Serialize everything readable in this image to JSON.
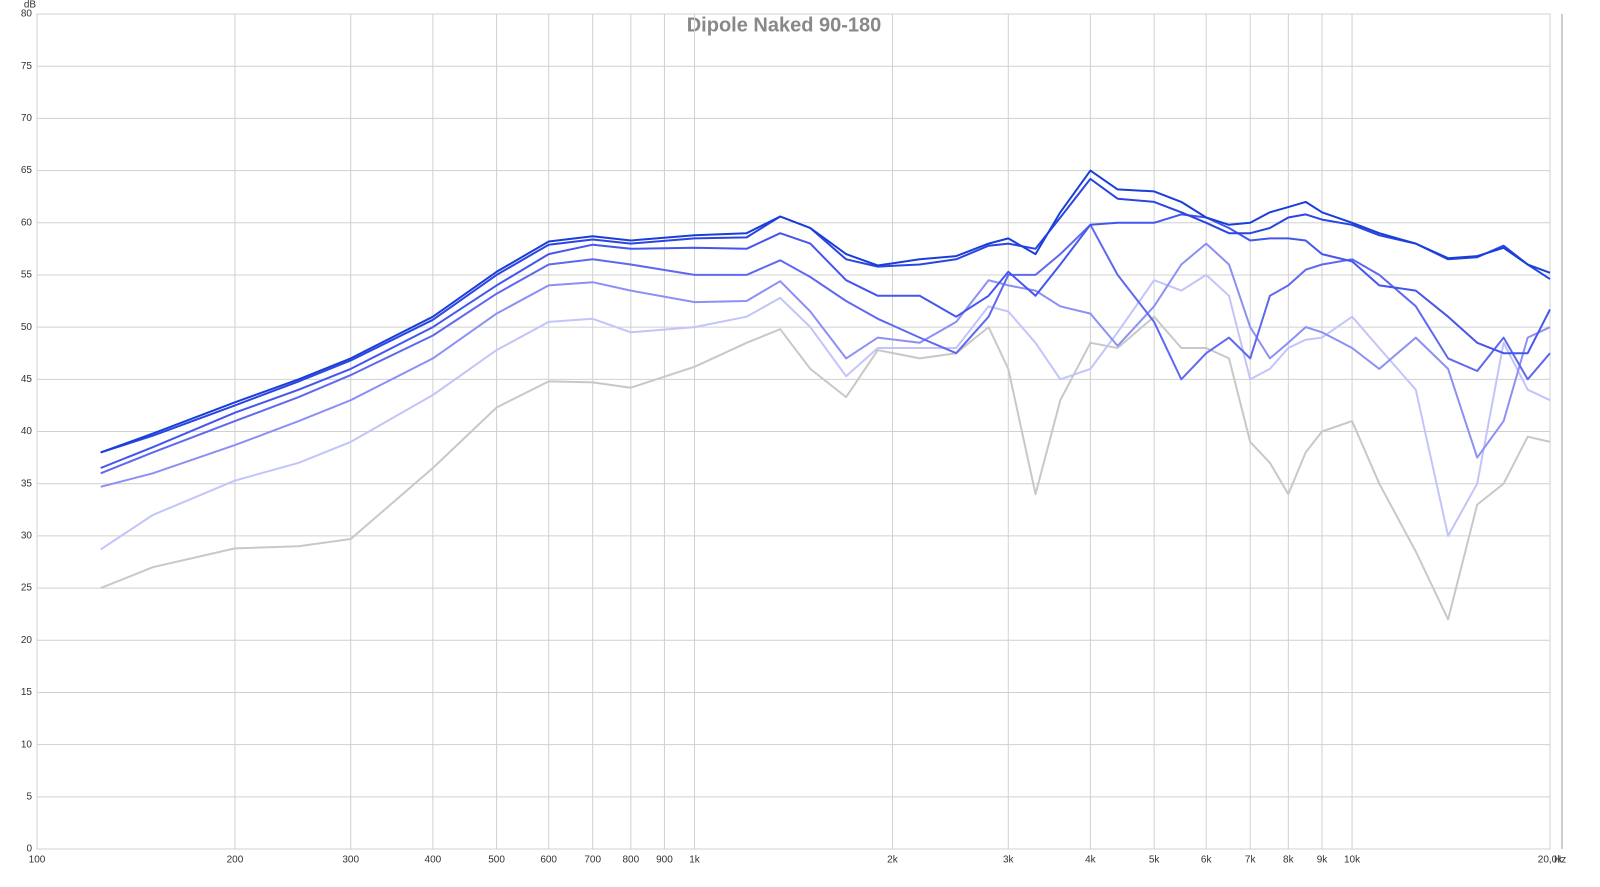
{
  "chart_data": {
    "type": "line",
    "title": "Dipole Naked 90-180",
    "xlabel": "Hz",
    "ylabel": "dB",
    "xscale": "log",
    "grid": true,
    "xlim": [
      100,
      20000
    ],
    "ylim": [
      0,
      80
    ],
    "xticks": [
      100,
      200,
      300,
      400,
      500,
      600,
      700,
      800,
      900,
      {
        "value": 1000,
        "label": "1k"
      },
      {
        "value": 2000,
        "label": "2k"
      },
      {
        "value": 3000,
        "label": "3k"
      },
      {
        "value": 4000,
        "label": "4k"
      },
      {
        "value": 5000,
        "label": "5k"
      },
      {
        "value": 6000,
        "label": "6k"
      },
      {
        "value": 7000,
        "label": "7k"
      },
      {
        "value": 8000,
        "label": "8k"
      },
      {
        "value": 9000,
        "label": "9k"
      },
      {
        "value": 10000,
        "label": "10k"
      },
      {
        "value": 20000,
        "label": "20,0k"
      }
    ],
    "yticks": [
      0,
      5,
      10,
      15,
      20,
      25,
      30,
      35,
      40,
      45,
      50,
      55,
      60,
      65,
      70,
      75,
      80
    ],
    "x": [
      125,
      150,
      200,
      250,
      300,
      400,
      500,
      600,
      700,
      800,
      1000,
      1200,
      1350,
      1500,
      1700,
      1900,
      2200,
      2500,
      2800,
      3000,
      3300,
      3600,
      4000,
      4400,
      5000,
      5500,
      6000,
      6500,
      7000,
      7500,
      8000,
      8500,
      9000,
      10000,
      11000,
      12500,
      14000,
      15500,
      17000,
      18500,
      20000
    ],
    "series": [
      {
        "color": "#1a3ed8",
        "values": [
          38,
          39.8,
          42.8,
          45,
          47,
          51,
          55.3,
          58.2,
          58.7,
          58.3,
          58.8,
          59,
          60.6,
          59.5,
          57,
          55.9,
          56.5,
          56.8,
          58,
          58.5,
          57,
          61,
          65,
          63.2,
          63,
          62,
          60.5,
          59.8,
          60,
          61,
          61.5,
          62,
          61,
          60,
          59,
          58,
          56.6,
          56.8,
          57.6,
          56,
          55.2
        ]
      },
      {
        "color": "#2a45e2",
        "values": [
          38,
          39.6,
          42.5,
          44.8,
          46.8,
          50.7,
          55,
          57.9,
          58.4,
          58,
          58.5,
          58.6,
          60.6,
          59.5,
          56.5,
          55.8,
          56,
          56.5,
          57.8,
          58,
          57.5,
          60.5,
          64.2,
          62.3,
          62,
          61,
          60,
          59,
          59,
          59.5,
          60.5,
          60.8,
          60.3,
          59.8,
          58.8,
          58,
          56.5,
          56.7,
          57.8,
          56,
          54.6
        ]
      },
      {
        "color": "#4456ec",
        "values": [
          36.5,
          38.5,
          41.8,
          44,
          46,
          50,
          54,
          57,
          57.9,
          57.5,
          57.6,
          57.5,
          59,
          58,
          54.5,
          53,
          53,
          51,
          53,
          55.3,
          53,
          56,
          59.8,
          60,
          60,
          60.8,
          60.5,
          59.5,
          58.3,
          58.5,
          58.5,
          58.3,
          57,
          56.3,
          54,
          53.5,
          51,
          48.5,
          47.5,
          47.5,
          51.7
        ]
      },
      {
        "color": "#6068f0",
        "values": [
          36,
          38,
          41,
          43.3,
          45.4,
          49.2,
          53.2,
          56,
          56.5,
          56,
          55,
          55,
          56.4,
          54.8,
          52.5,
          50.8,
          49,
          47.5,
          51,
          55,
          55,
          57,
          59.8,
          55,
          50.5,
          45,
          47.5,
          49,
          47,
          53,
          54,
          55.5,
          56,
          56.5,
          55,
          52,
          47,
          45.8,
          49,
          45,
          47.5
        ]
      },
      {
        "color": "#8c90f5",
        "values": [
          34.7,
          36,
          38.7,
          41,
          43,
          47,
          51.3,
          54,
          54.3,
          53.5,
          52.4,
          52.5,
          54.4,
          51.5,
          47,
          49,
          48.5,
          50.5,
          54.5,
          54,
          53.5,
          52,
          51.3,
          48.2,
          52,
          56,
          58,
          56,
          50,
          47,
          48.5,
          50,
          49.5,
          48,
          46,
          49,
          46,
          37.5,
          41,
          49,
          50
        ]
      },
      {
        "color": "#c2c4fa",
        "values": [
          28.7,
          32,
          35.3,
          37,
          39,
          43.5,
          47.8,
          50.5,
          50.8,
          49.5,
          50,
          51,
          52.8,
          50,
          45.3,
          48,
          48,
          48,
          52,
          51.5,
          48.5,
          45,
          46,
          49.5,
          54.5,
          53.5,
          55,
          53,
          45,
          46,
          48,
          48.8,
          49,
          51,
          48,
          44,
          30,
          35,
          48.5,
          44,
          43
        ]
      },
      {
        "color": "#c8c8c8",
        "values": [
          25,
          27,
          28.8,
          29,
          29.7,
          36.5,
          42.3,
          44.8,
          44.7,
          44.2,
          46.2,
          48.5,
          49.8,
          46,
          43.3,
          47.8,
          47,
          47.5,
          50,
          46,
          34,
          43,
          48.5,
          48,
          51,
          48,
          48,
          47,
          39,
          37,
          34,
          38,
          40,
          41,
          35,
          28.5,
          22,
          33,
          35,
          39.5,
          39
        ]
      }
    ]
  }
}
